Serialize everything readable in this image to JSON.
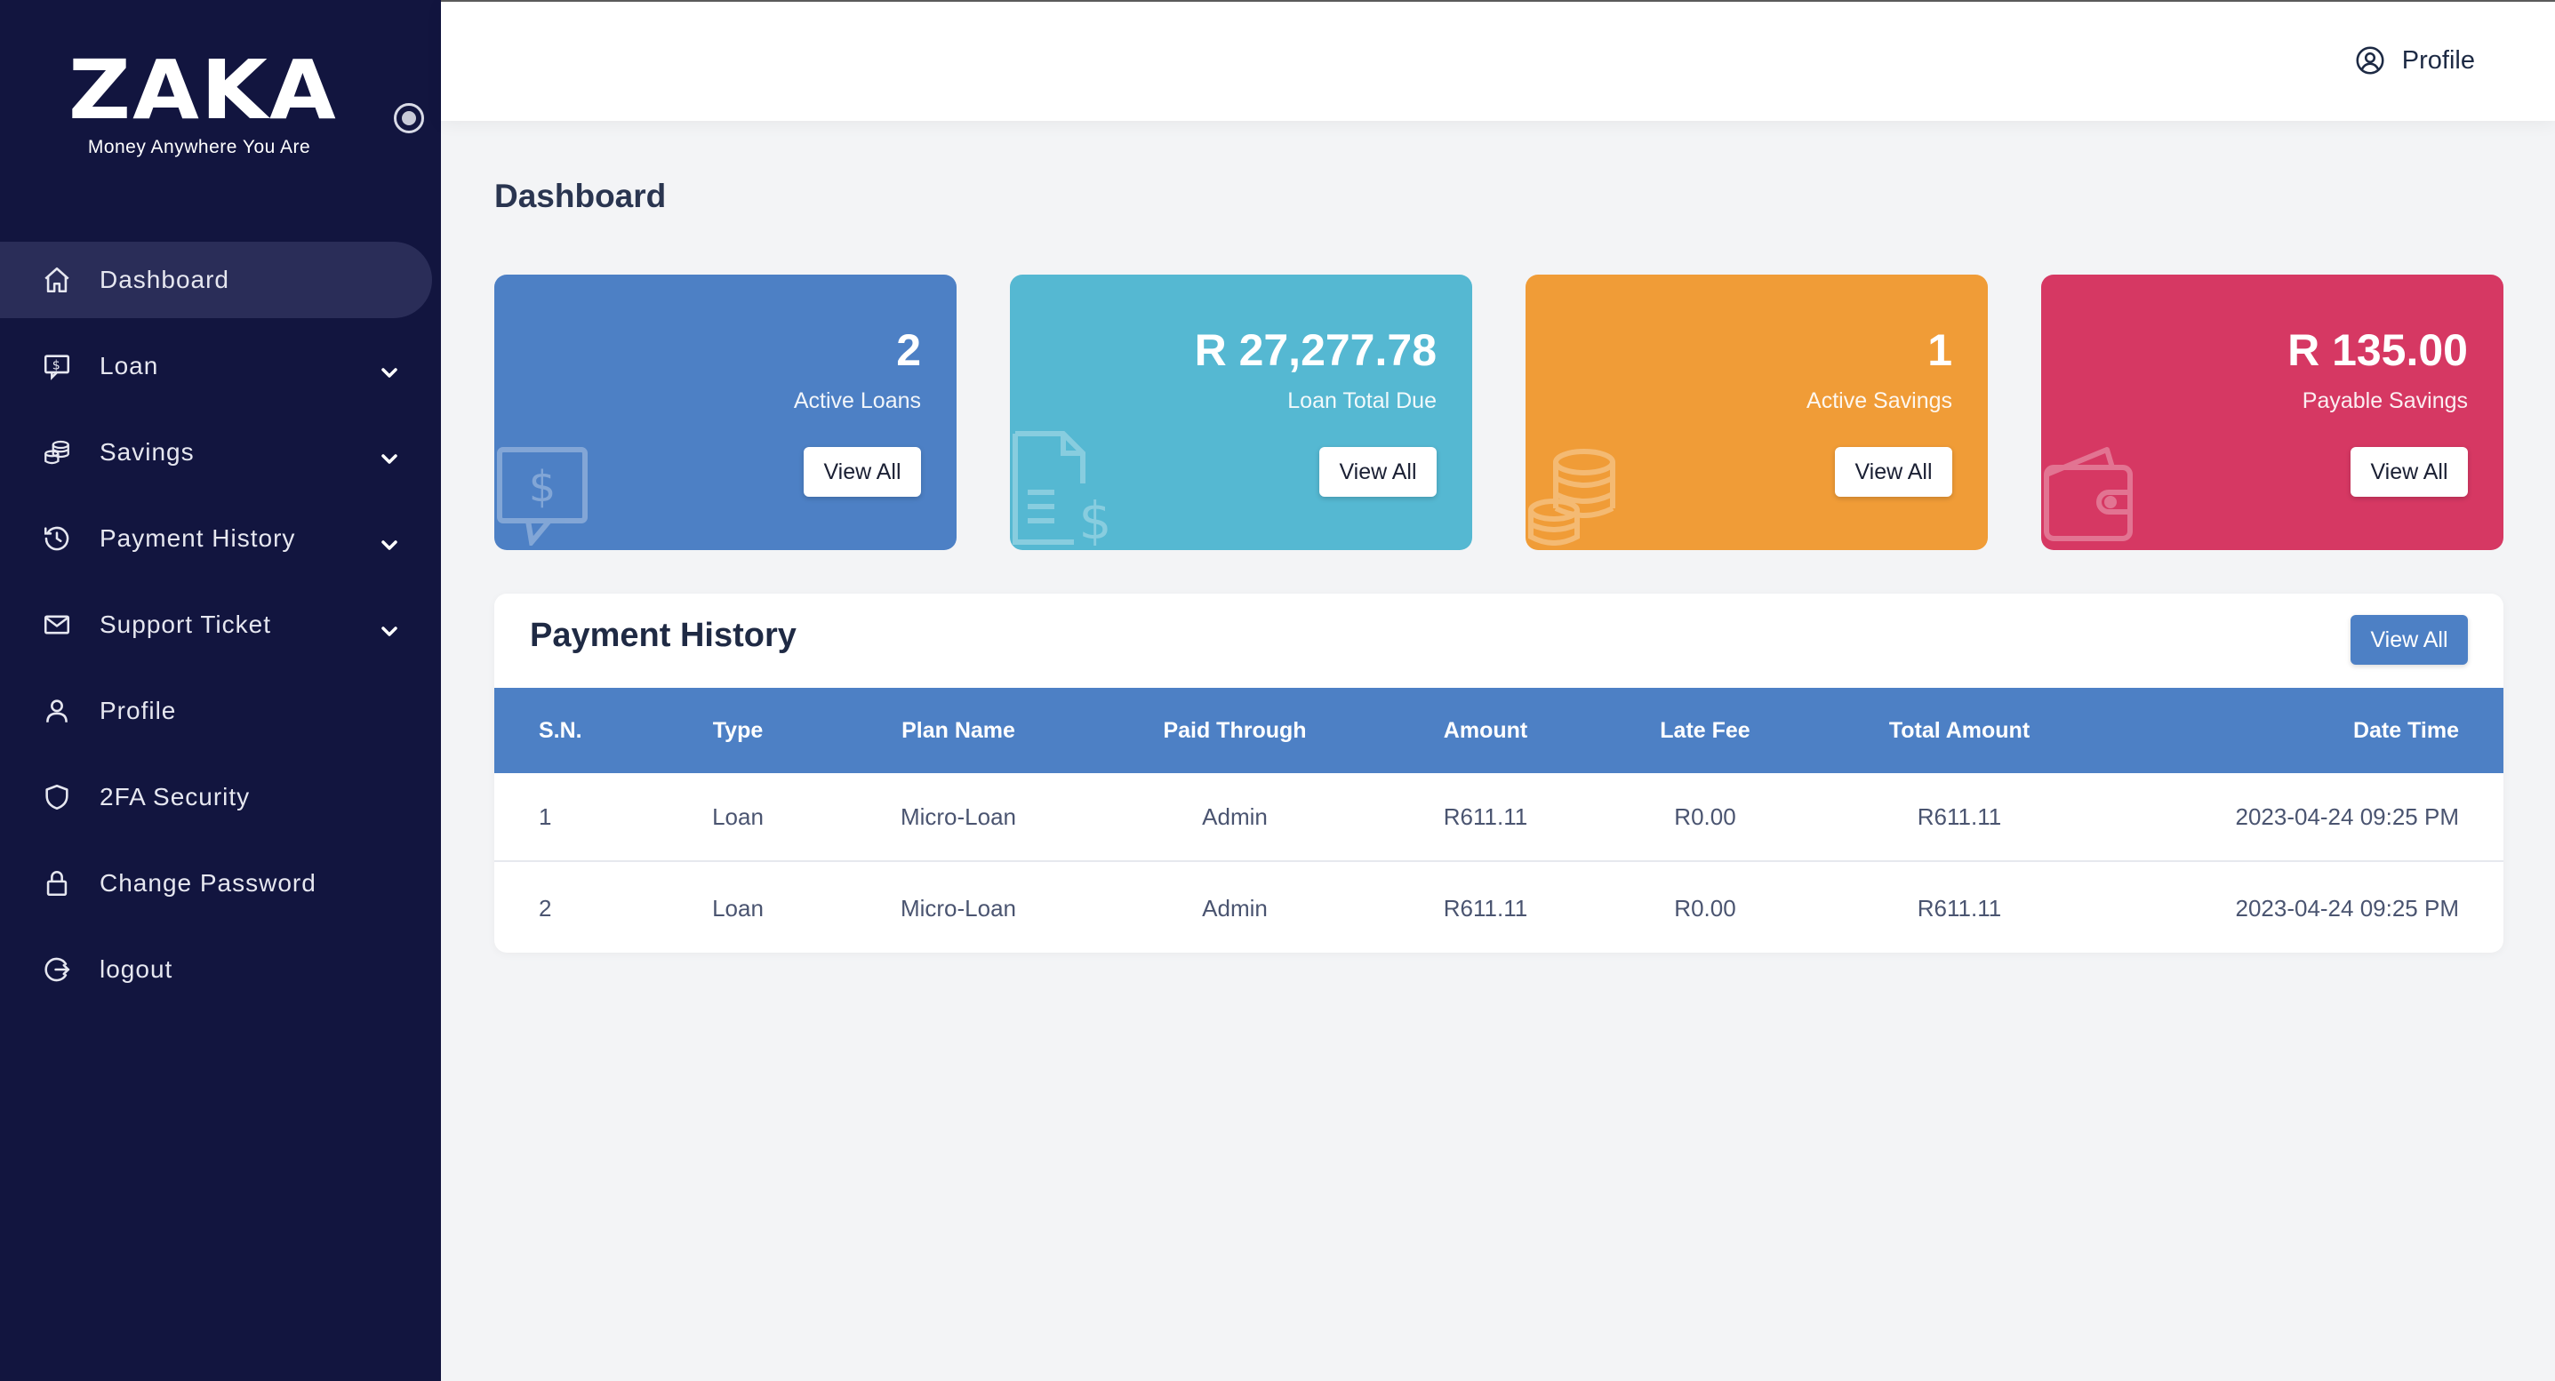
{
  "brand": {
    "name": "ZAKA",
    "tagline": "Money Anywhere You Are"
  },
  "sidebar": {
    "items": [
      {
        "label": "Dashboard",
        "icon": "home-icon",
        "active": true,
        "has_submenu": false
      },
      {
        "label": "Loan",
        "icon": "loan-dollar-icon",
        "active": false,
        "has_submenu": true
      },
      {
        "label": "Savings",
        "icon": "coins-icon",
        "active": false,
        "has_submenu": true
      },
      {
        "label": "Payment History",
        "icon": "history-icon",
        "active": false,
        "has_submenu": true
      },
      {
        "label": "Support Ticket",
        "icon": "envelope-icon",
        "active": false,
        "has_submenu": true
      },
      {
        "label": "Profile",
        "icon": "user-icon",
        "active": false,
        "has_submenu": false
      },
      {
        "label": "2FA Security",
        "icon": "shield-icon",
        "active": false,
        "has_submenu": false
      },
      {
        "label": "Change Password",
        "icon": "lock-icon",
        "active": false,
        "has_submenu": false
      },
      {
        "label": "logout",
        "icon": "logout-icon",
        "active": false,
        "has_submenu": false
      }
    ]
  },
  "header": {
    "profile_label": "Profile"
  },
  "page": {
    "title": "Dashboard"
  },
  "cards": [
    {
      "value": "2",
      "label": "Active Loans",
      "button": "View All",
      "color": "#4d80c5",
      "icon": "loan-dollar-icon"
    },
    {
      "value": "R 27,277.78",
      "label": "Loan Total Due",
      "button": "View All",
      "color": "#55b8d2",
      "icon": "invoice-dollar-icon"
    },
    {
      "value": "1",
      "label": "Active Savings",
      "button": "View All",
      "color": "#f09c37",
      "icon": "coins-icon"
    },
    {
      "value": "R 135.00",
      "label": "Payable Savings",
      "button": "View All",
      "color": "#d63863",
      "icon": "wallet-icon"
    }
  ],
  "payment_history": {
    "title": "Payment History",
    "button": "View All",
    "columns": [
      "S.N.",
      "Type",
      "Plan Name",
      "Paid Through",
      "Amount",
      "Late Fee",
      "Total Amount",
      "Date Time"
    ],
    "rows": [
      [
        "1",
        "Loan",
        "Micro-Loan",
        "Admin",
        "R611.11",
        "R0.00",
        "R611.11",
        "2023-04-24 09:25 PM"
      ],
      [
        "2",
        "Loan",
        "Micro-Loan",
        "Admin",
        "R611.11",
        "R0.00",
        "R611.11",
        "2023-04-24 09:25 PM"
      ]
    ]
  },
  "colors": {
    "sidebar_bg": "#12153f",
    "sidebar_active": "#2a2d58",
    "accent_blue": "#4d80c5",
    "page_bg": "#f3f4f6"
  }
}
